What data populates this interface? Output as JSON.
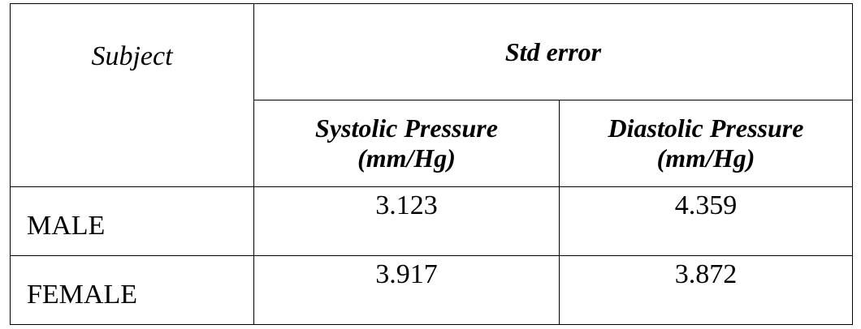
{
  "table": {
    "subject_header": "Subject",
    "group_header": "Std error",
    "columns": [
      {
        "line1": "Systolic Pressure",
        "line2": "(mm/Hg)"
      },
      {
        "line1": "Diastolic Pressure",
        "line2": "(mm/Hg)"
      }
    ],
    "rows": [
      {
        "label": "MALE",
        "values": [
          "3.123",
          "4.359"
        ]
      },
      {
        "label": "FEMALE",
        "values": [
          "3.917",
          "3.872"
        ]
      }
    ]
  }
}
